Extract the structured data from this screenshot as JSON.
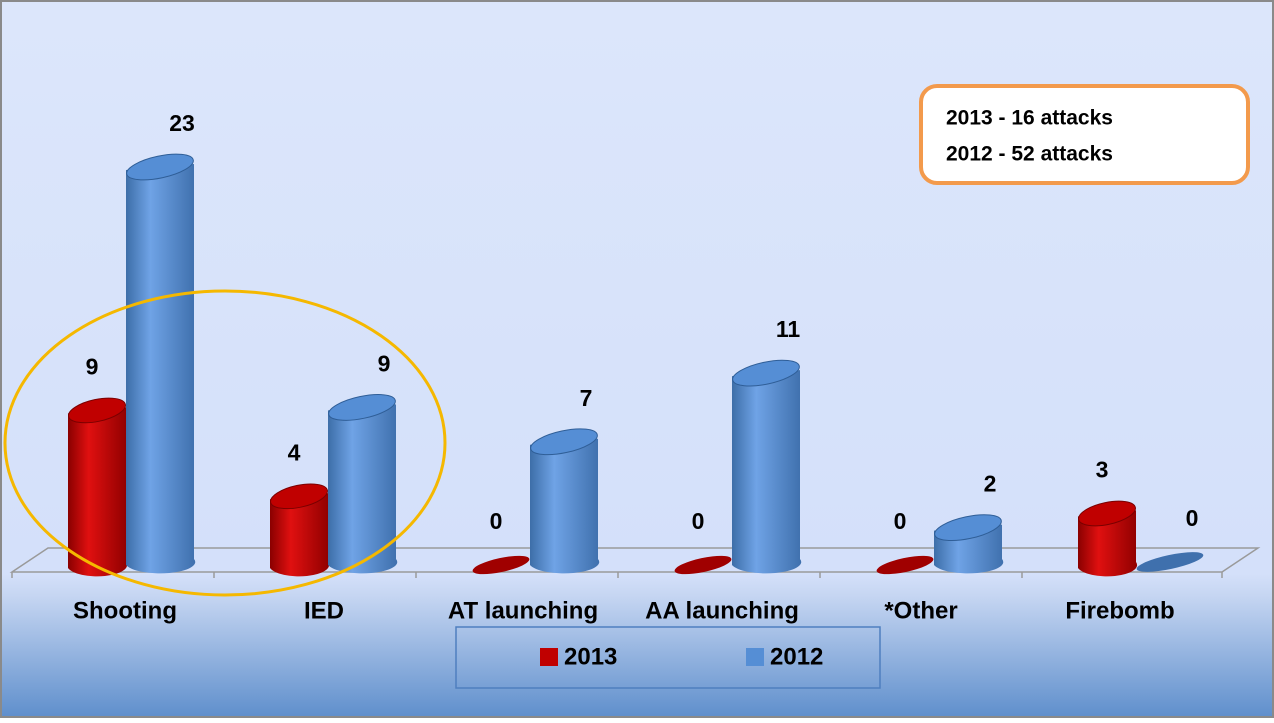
{
  "chart_data": {
    "type": "bar",
    "categories": [
      "Shooting",
      "IED",
      "AT launching",
      "AA launching",
      "*Other",
      "Firebomb"
    ],
    "series": [
      {
        "name": "2013",
        "color": "#c00000",
        "values": [
          9,
          4,
          0,
          0,
          0,
          3
        ]
      },
      {
        "name": "2012",
        "color": "#558ed5",
        "values": [
          23,
          9,
          7,
          11,
          2,
          0
        ]
      }
    ],
    "annotations": [
      "2013 - 16 attacks",
      "2012 - 52 attacks"
    ]
  }
}
